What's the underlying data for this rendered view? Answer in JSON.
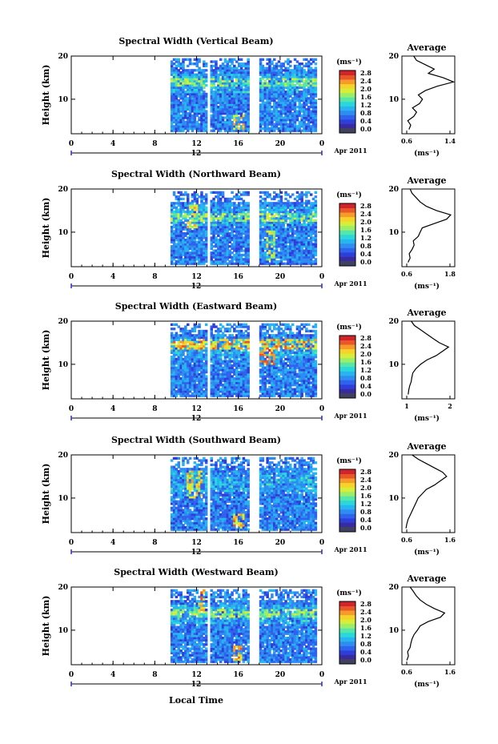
{
  "colors": {
    "colormap": [
      "#3a2aa0",
      "#2e3ed8",
      "#2f63ee",
      "#2f8cf0",
      "#27b4f0",
      "#2ad8dc",
      "#55e6a8",
      "#9aee6a",
      "#d6ee3a",
      "#f6d22a",
      "#f69a2a",
      "#e8562a",
      "#d0242a"
    ],
    "floor": "#404060",
    "line": "#000000"
  },
  "figure": {
    "xlabel": "Local Time",
    "date_label": "Apr 2011",
    "day_label": "12"
  },
  "chart_data": [
    {
      "type": "heatmap",
      "title": "Spectral Width (Vertical Beam)",
      "ylabel": "Height (km)",
      "xlim": [
        0,
        24
      ],
      "ylim": [
        2,
        20
      ],
      "xticks": [
        "0",
        "4",
        "8",
        "12",
        "16",
        "20",
        "0"
      ],
      "yticks": [
        "10",
        "20"
      ],
      "time_segments": [
        [
          9.5,
          12.9
        ],
        [
          13.3,
          17.0
        ],
        [
          18.0,
          23.4
        ]
      ],
      "colorbar": {
        "unit": "(ms⁻¹)",
        "labels": [
          "0.0",
          "0.4",
          "0.8",
          "1.2",
          "1.6",
          "2.0",
          "2.4",
          "2.8"
        ]
      },
      "hot_layers": [
        {
          "t": [
            9.5,
            23.4
          ],
          "h": [
            13,
            14.5
          ],
          "v": 1.8
        },
        {
          "t": [
            15.5,
            16.5
          ],
          "h": [
            3,
            6
          ],
          "v": 2.4
        }
      ],
      "average": {
        "title": "Average",
        "unit": "(ms⁻¹)",
        "xlim": [
          0.5,
          1.4
        ],
        "xticks": [
          "0.6",
          "1.4"
        ],
        "height": [
          3,
          4,
          5,
          6,
          7,
          8,
          9,
          10,
          11,
          12,
          13,
          14,
          15,
          16,
          17,
          18,
          19,
          20
        ],
        "value": [
          0.62,
          0.65,
          0.6,
          0.7,
          0.75,
          0.68,
          0.8,
          0.85,
          0.78,
          0.9,
          1.1,
          1.38,
          1.2,
          0.95,
          1.05,
          0.9,
          0.75,
          0.7
        ]
      }
    },
    {
      "type": "heatmap",
      "title": "Spectral Width (Northward Beam)",
      "ylabel": "Height (km)",
      "xlim": [
        0,
        24
      ],
      "ylim": [
        2,
        20
      ],
      "xticks": [
        "0",
        "4",
        "8",
        "12",
        "16",
        "20",
        "0"
      ],
      "yticks": [
        "10",
        "20"
      ],
      "time_segments": [
        [
          9.5,
          12.9
        ],
        [
          13.3,
          17.0
        ],
        [
          18.0,
          23.4
        ]
      ],
      "colorbar": {
        "unit": "(ms⁻¹)",
        "labels": [
          "0.0",
          "0.4",
          "0.8",
          "1.2",
          "1.6",
          "2.0",
          "2.4",
          "2.8"
        ]
      },
      "hot_layers": [
        {
          "t": [
            9.5,
            23.4
          ],
          "h": [
            12.5,
            14
          ],
          "v": 1.9
        },
        {
          "t": [
            11,
            12
          ],
          "h": [
            11,
            16
          ],
          "v": 2.2
        },
        {
          "t": [
            18.5,
            19.5
          ],
          "h": [
            3,
            10
          ],
          "v": 2.0
        }
      ],
      "average": {
        "title": "Average",
        "unit": "(ms⁻¹)",
        "xlim": [
          0.5,
          1.8
        ],
        "xticks": [
          "0.6",
          "1.8"
        ],
        "height": [
          3,
          4,
          5,
          6,
          7,
          8,
          9,
          10,
          11,
          12,
          13,
          14,
          15,
          16,
          17,
          18,
          19,
          20
        ],
        "value": [
          0.65,
          0.7,
          0.68,
          0.75,
          0.8,
          0.78,
          0.9,
          0.95,
          1.0,
          1.3,
          1.6,
          1.7,
          1.35,
          1.1,
          0.95,
          0.85,
          0.75,
          0.7
        ]
      }
    },
    {
      "type": "heatmap",
      "title": "Spectral Width (Eastward Beam)",
      "ylabel": "Height (km)",
      "xlim": [
        0,
        24
      ],
      "ylim": [
        2,
        20
      ],
      "xticks": [
        "0",
        "4",
        "8",
        "12",
        "16",
        "20",
        "0"
      ],
      "yticks": [
        "10",
        "20"
      ],
      "time_segments": [
        [
          9.5,
          12.9
        ],
        [
          13.3,
          17.0
        ],
        [
          18.0,
          23.4
        ]
      ],
      "colorbar": {
        "unit": "(ms⁻¹)",
        "labels": [
          "0.0",
          "0.4",
          "0.8",
          "1.2",
          "1.6",
          "2.0",
          "2.4",
          "2.8"
        ]
      },
      "hot_layers": [
        {
          "t": [
            9.5,
            23.4
          ],
          "h": [
            13.5,
            15.5
          ],
          "v": 2.4
        },
        {
          "t": [
            18,
            19.5
          ],
          "h": [
            10,
            13
          ],
          "v": 2.8
        }
      ],
      "average": {
        "title": "Average",
        "unit": "(ms⁻¹)",
        "xlim": [
          0.5,
          2.2
        ],
        "xticks": [
          "1",
          "2"
        ],
        "height": [
          3,
          4,
          5,
          6,
          7,
          8,
          9,
          10,
          11,
          12,
          13,
          14,
          15,
          16,
          17,
          18,
          19,
          20
        ],
        "value": [
          0.7,
          0.72,
          0.75,
          0.8,
          0.82,
          0.85,
          0.95,
          1.1,
          1.3,
          1.6,
          1.8,
          2.0,
          1.7,
          1.5,
          1.3,
          1.1,
          0.9,
          0.8
        ]
      }
    },
    {
      "type": "heatmap",
      "title": "Spectral Width (Southward Beam)",
      "ylabel": "Height (km)",
      "xlim": [
        0,
        24
      ],
      "ylim": [
        2,
        20
      ],
      "xticks": [
        "0",
        "4",
        "8",
        "12",
        "16",
        "20",
        "0"
      ],
      "yticks": [
        "10",
        "20"
      ],
      "time_segments": [
        [
          9.5,
          12.9
        ],
        [
          13.3,
          17.0
        ],
        [
          18.0,
          23.4
        ]
      ],
      "colorbar": {
        "unit": "(ms⁻¹)",
        "labels": [
          "0.0",
          "0.4",
          "0.8",
          "1.2",
          "1.6",
          "2.0",
          "2.4",
          "2.8"
        ]
      },
      "hot_layers": [
        {
          "t": [
            11,
            12.5
          ],
          "h": [
            10,
            16
          ],
          "v": 2.2
        },
        {
          "t": [
            15.5,
            16.5
          ],
          "h": [
            3,
            6
          ],
          "v": 2.4
        }
      ],
      "average": {
        "title": "Average",
        "unit": "(ms⁻¹)",
        "xlim": [
          0.5,
          1.8
        ],
        "xticks": [
          "0.6",
          "1.6"
        ],
        "height": [
          3,
          4,
          5,
          6,
          7,
          8,
          9,
          10,
          11,
          12,
          13,
          14,
          15,
          16,
          17,
          18,
          19,
          20
        ],
        "value": [
          0.6,
          0.62,
          0.65,
          0.7,
          0.75,
          0.8,
          0.85,
          0.9,
          1.0,
          1.1,
          1.3,
          1.45,
          1.6,
          1.5,
          1.3,
          1.1,
          0.9,
          0.75
        ]
      }
    },
    {
      "type": "heatmap",
      "title": "Spectral Width (Westward Beam)",
      "ylabel": "Height (km)",
      "xlim": [
        0,
        24
      ],
      "ylim": [
        2,
        20
      ],
      "xticks": [
        "0",
        "4",
        "8",
        "12",
        "16",
        "20",
        "0"
      ],
      "yticks": [
        "10",
        "20"
      ],
      "time_segments": [
        [
          9.5,
          12.9
        ],
        [
          13.3,
          17.0
        ],
        [
          18.0,
          23.4
        ]
      ],
      "colorbar": {
        "unit": "(ms⁻¹)",
        "labels": [
          "0.0",
          "0.4",
          "0.8",
          "1.2",
          "1.6",
          "2.0",
          "2.4",
          "2.8"
        ]
      },
      "hot_layers": [
        {
          "t": [
            9.5,
            23.4
          ],
          "h": [
            13,
            14.5
          ],
          "v": 1.9
        },
        {
          "t": [
            12,
            12.8
          ],
          "h": [
            14,
            20
          ],
          "v": 2.5
        },
        {
          "t": [
            15.5,
            16.5
          ],
          "h": [
            3,
            6
          ],
          "v": 2.4
        }
      ],
      "average": {
        "title": "Average",
        "unit": "(ms⁻¹)",
        "xlim": [
          0.5,
          1.8
        ],
        "xticks": [
          "0.6",
          "1.6"
        ],
        "height": [
          3,
          4,
          5,
          6,
          7,
          8,
          9,
          10,
          11,
          12,
          13,
          14,
          15,
          16,
          17,
          18,
          19,
          20
        ],
        "value": [
          0.62,
          0.66,
          0.64,
          0.7,
          0.72,
          0.75,
          0.8,
          0.88,
          0.95,
          1.15,
          1.45,
          1.55,
          1.3,
          1.1,
          0.95,
          0.85,
          0.78,
          0.7
        ]
      }
    }
  ]
}
